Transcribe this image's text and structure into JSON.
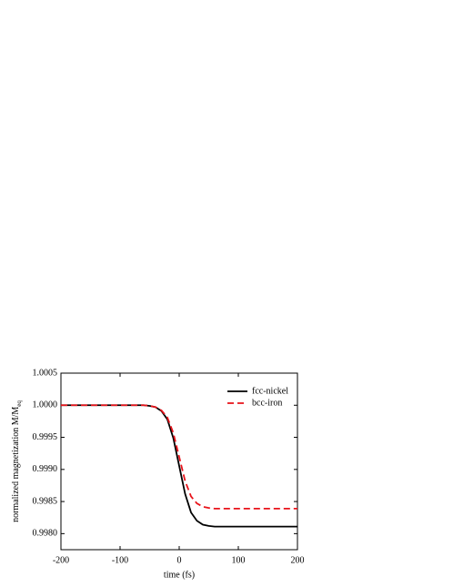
{
  "chart_data": {
    "type": "line",
    "xlabel": "time (fs)",
    "ylabel": "normalized magnetization M/M",
    "ylabel_sub": "eq",
    "x": [
      -200,
      -100,
      -60,
      -50,
      -40,
      -30,
      -20,
      -10,
      0,
      10,
      20,
      30,
      40,
      50,
      60,
      80,
      100,
      150,
      200
    ],
    "series": [
      {
        "name": "fcc-nickel",
        "color": "#000000",
        "dash": "solid",
        "values": [
          1.0,
          1.0,
          1.0,
          0.99999,
          0.99997,
          0.99991,
          0.99978,
          0.99949,
          0.999055,
          0.99862,
          0.99833,
          0.9982,
          0.99814,
          0.99812,
          0.99811,
          0.99811,
          0.99811,
          0.99811,
          0.99811
        ]
      },
      {
        "name": "bcc-iron",
        "color": "#e8141b",
        "dash": "dashed",
        "values": [
          1.0,
          1.0,
          1.0,
          0.99999,
          0.99997,
          0.99992,
          0.99981,
          0.99957,
          0.999195,
          0.99882,
          0.99858,
          0.99847,
          0.99842,
          0.9984,
          0.99839,
          0.99839,
          0.99839,
          0.99839,
          0.99839
        ]
      }
    ],
    "xlim": [
      -200,
      200
    ],
    "xticks": [
      -200,
      -100,
      0,
      100,
      200
    ],
    "ylim": [
      0.99775,
      1.0005
    ],
    "yticks": [
      {
        "value": 0.998,
        "label": "0.9980"
      },
      0.9985,
      {
        "value": 0.999,
        "label": "0.9990"
      },
      0.9995,
      {
        "value": 1.0,
        "label": "1.0000"
      },
      1.0005
    ],
    "legend": "upper right"
  }
}
